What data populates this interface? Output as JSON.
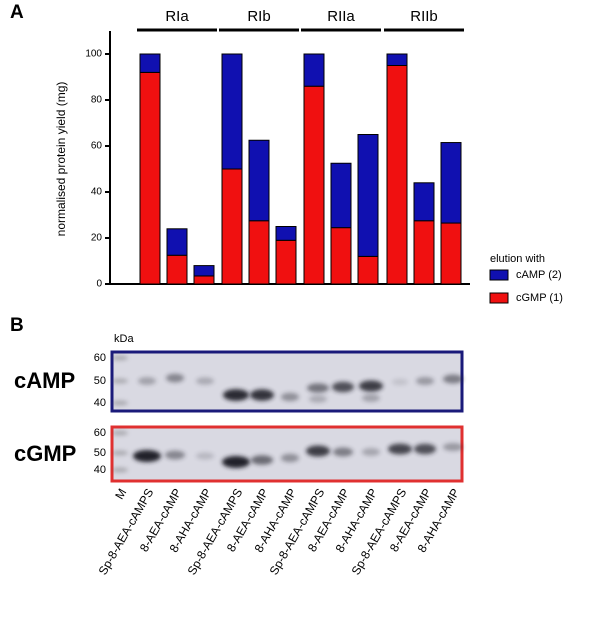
{
  "panels": {
    "a": "A",
    "b": "B"
  },
  "chart_data": {
    "type": "stacked_bar",
    "y_label": "normalised protein yield (mg)",
    "groups": [
      "RIa",
      "RIb",
      "RIIa",
      "RIIb"
    ],
    "categories": [
      null,
      null,
      null,
      null,
      null,
      null,
      null,
      null,
      null,
      null,
      null,
      null
    ],
    "legend_title": "elution with",
    "series": [
      {
        "name": "cAMP (2)",
        "color": "#1010b0",
        "values": [
          8,
          11.5,
          4.5,
          50,
          35,
          6,
          14,
          28,
          53,
          5,
          16.5,
          35
        ]
      },
      {
        "name": "cGMP (1)",
        "color": "#f01010",
        "values": [
          92,
          12.5,
          3.5,
          50,
          27.5,
          19,
          86,
          24.5,
          12,
          95,
          27.5,
          26.5
        ]
      }
    ],
    "ylim": [
      0,
      110
    ],
    "yticks": [
      0,
      20,
      40,
      60,
      80,
      100
    ],
    "grid": false
  },
  "gel": {
    "unit": "kDa",
    "gels": [
      {
        "label": "cAMP",
        "markers": [
          "60",
          "50",
          "40"
        ]
      },
      {
        "label": "cGMP",
        "markers": [
          "60",
          "50",
          "40"
        ]
      }
    ],
    "lanes": [
      "M",
      "Sp-8-AEA-cAMPS",
      "8-AEA-cAMP",
      "8-AHA-cAMP",
      "Sp-8-AEA-cAMPS",
      "8-AEA-cAMP",
      "8-AHA-cAMP",
      "Sp-8-AEA-cAMPS",
      "8-AEA-cAMP",
      "8-AHA-cAMP",
      "Sp-8-AEA-cAMPS",
      "8-AEA-cAMP",
      "8-AHA-cAMP"
    ]
  }
}
